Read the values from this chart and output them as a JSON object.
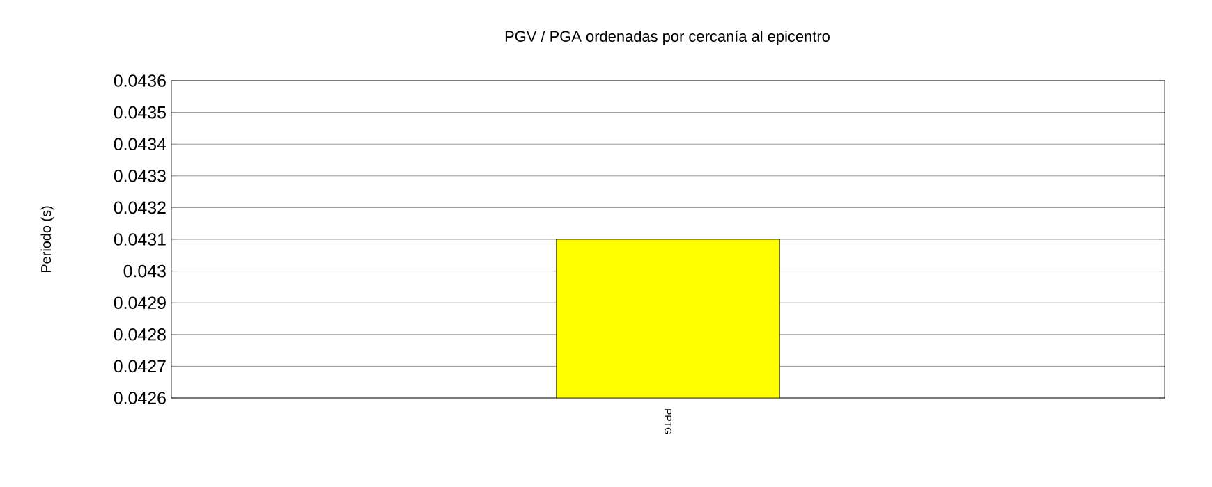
{
  "chart_data": {
    "type": "bar",
    "title": "PGV / PGA ordenadas por cercanía al epicentro",
    "ylabel": "Periodo (s)",
    "categories": [
      "PPTG"
    ],
    "values": [
      0.0431
    ],
    "color": "#ffff00",
    "ylim": [
      0.0426,
      0.0436
    ],
    "yticks": [
      0.0426,
      0.0427,
      0.0428,
      0.0429,
      0.043,
      0.0431,
      0.0432,
      0.0433,
      0.0434,
      0.0435,
      0.0436
    ],
    "grid": "y"
  }
}
